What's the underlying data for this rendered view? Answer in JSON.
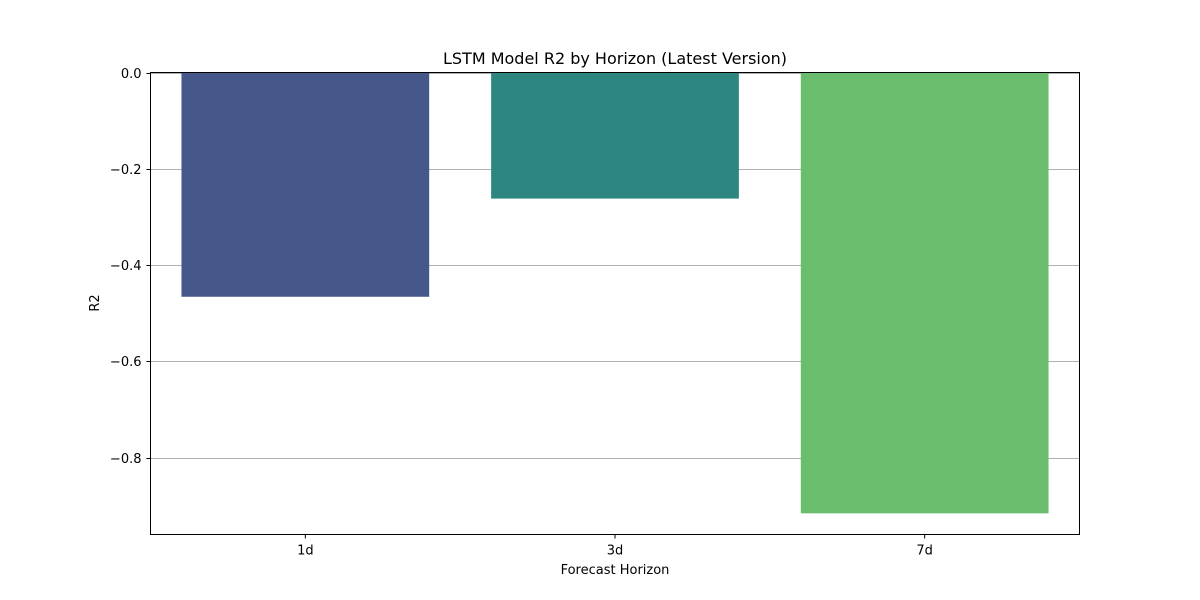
{
  "chart_data": {
    "type": "bar",
    "title": "LSTM Model R2 by Horizon (Latest Version)",
    "xlabel": "Forecast Horizon",
    "ylabel": "R2",
    "categories": [
      "1d",
      "3d",
      "7d"
    ],
    "values": [
      -0.466,
      -0.262,
      -0.916
    ],
    "colors": [
      "#46578a",
      "#2e8680",
      "#6bbd6e"
    ],
    "ylim": [
      -0.96,
      0.0
    ],
    "yticks": [
      0.0,
      -0.2,
      -0.4,
      -0.6,
      -0.8
    ],
    "ytick_labels": [
      "0.0",
      "−0.2",
      "−0.4",
      "−0.6",
      "−0.8"
    ],
    "grid": "y",
    "legend": "none"
  }
}
